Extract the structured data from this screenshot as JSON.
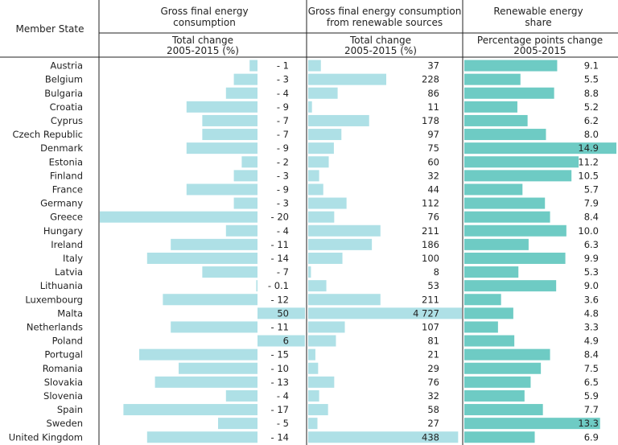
{
  "headers": {
    "member_state": "Member State",
    "col1_title_line1": "Gross final energy",
    "col1_title_line2": "consumption",
    "col1_sub_line1": "Total change",
    "col1_sub_line2": "2005-2015 (%)",
    "col2_title_line1": "Gross final energy consumption",
    "col2_title_line2": "from renewable sources",
    "col2_sub_line1": "Total change",
    "col2_sub_line2": "2005-2015 (%)",
    "col3_title_line1": "Renewable energy",
    "col3_title_line2": "share",
    "col3_sub_line1": "Percentage points change",
    "col3_sub_line2": "2005-2015"
  },
  "colors": {
    "light_bar": "#aee0e6",
    "dark_bar": "#6ecbc4",
    "divider": "#222222"
  },
  "chart_data": {
    "type": "bar",
    "categories": [
      "Austria",
      "Belgium",
      "Bulgaria",
      "Croatia",
      "Cyprus",
      "Czech Republic",
      "Denmark",
      "Estonia",
      "Finland",
      "France",
      "Germany",
      "Greece",
      "Hungary",
      "Ireland",
      "Italy",
      "Latvia",
      "Lithuania",
      "Luxembourg",
      "Malta",
      "Netherlands",
      "Poland",
      "Portugal",
      "Romania",
      "Slovakia",
      "Slovenia",
      "Spain",
      "Sweden",
      "United Kingdom"
    ],
    "series": [
      {
        "values": [
          -1,
          -3,
          -4,
          -9,
          -7,
          -7,
          -9,
          -2,
          -3,
          -9,
          -3,
          -20,
          -4,
          -11,
          -14,
          -7,
          -0.1,
          -12,
          50,
          -11,
          6,
          -15,
          -10,
          -13,
          -4,
          -17,
          -5,
          -14
        ],
        "labels": [
          "- 1",
          "- 3",
          "- 4",
          "- 9",
          "- 7",
          "- 7",
          "- 9",
          "- 2",
          "- 3",
          "- 9",
          "- 3",
          "- 20",
          "- 4",
          "- 11",
          "- 14",
          "- 7",
          "- 0.1",
          "- 12",
          "50",
          "- 11",
          "6",
          "- 15",
          "- 10",
          "- 13",
          "- 4",
          "- 17",
          "- 5",
          "- 14"
        ]
      },
      {
        "values": [
          37,
          228,
          86,
          11,
          178,
          97,
          75,
          60,
          32,
          44,
          112,
          76,
          211,
          186,
          100,
          8,
          53,
          211,
          4727,
          107,
          81,
          21,
          29,
          76,
          32,
          58,
          27,
          438
        ],
        "labels": [
          "37",
          "228",
          "86",
          "11",
          "178",
          "97",
          "75",
          "60",
          "32",
          "44",
          "112",
          "76",
          "211",
          "186",
          "100",
          "8",
          "53",
          "211",
          "4 727",
          "107",
          "81",
          "21",
          "29",
          "76",
          "32",
          "58",
          "27",
          "438"
        ]
      },
      {
        "values": [
          9.1,
          5.5,
          8.8,
          5.2,
          6.2,
          8.0,
          14.9,
          11.2,
          10.5,
          5.7,
          7.9,
          8.4,
          10.0,
          6.3,
          9.9,
          5.3,
          9.0,
          3.6,
          4.8,
          3.3,
          4.9,
          8.4,
          7.5,
          6.5,
          5.9,
          7.7,
          13.3,
          6.9
        ],
        "labels": [
          "9.1",
          "5.5",
          "8.8",
          "5.2",
          "6.2",
          "8.0",
          "14.9",
          "11.2",
          "10.5",
          "5.7",
          "7.9",
          "8.4",
          "10.0",
          "6.3",
          "9.9",
          "5.3",
          "9.0",
          "3.6",
          "4.8",
          "3.3",
          "4.9",
          "8.4",
          "7.5",
          "6.5",
          "5.9",
          "7.7",
          "13.3",
          "6.9"
        ]
      }
    ]
  }
}
